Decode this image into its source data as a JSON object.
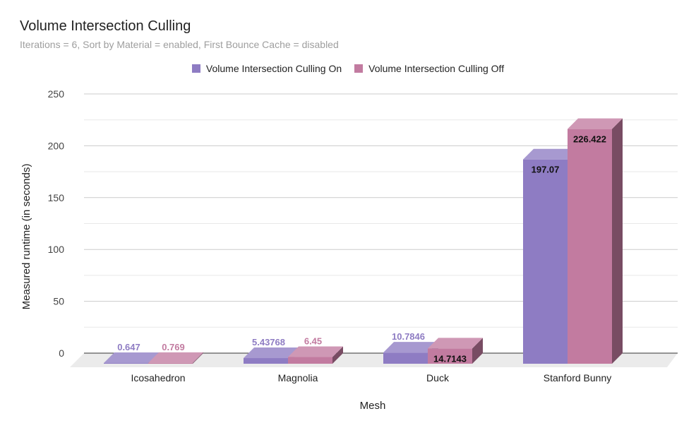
{
  "chart_data": {
    "type": "bar",
    "title": "Volume Intersection Culling",
    "subtitle": "Iterations = 6, Sort by Material = enabled, First Bounce Cache = disabled",
    "xlabel": "Mesh",
    "ylabel": "Measured runtime (in seconds)",
    "ylim": [
      0,
      250
    ],
    "yticks": [
      "0",
      "50",
      "100",
      "150",
      "200",
      "250"
    ],
    "categories": [
      "Icosahedron",
      "Magnolia",
      "Duck",
      "Stanford Bunny"
    ],
    "series": [
      {
        "name": "Volume Intersection Culling On",
        "color": "#8e7cc3",
        "values": [
          0.647,
          5.43768,
          10.7846,
          197.07
        ],
        "labels": [
          "0.647",
          "5.43768",
          "10.7846",
          "197.07"
        ]
      },
      {
        "name": "Volume Intersection Culling Off",
        "color": "#c27ba0",
        "values": [
          0.769,
          6.45,
          14.7143,
          226.422
        ],
        "labels": [
          "0.769",
          "6.45",
          "14.7143",
          "226.422"
        ]
      }
    ],
    "legend_position": "top",
    "grid": true
  }
}
